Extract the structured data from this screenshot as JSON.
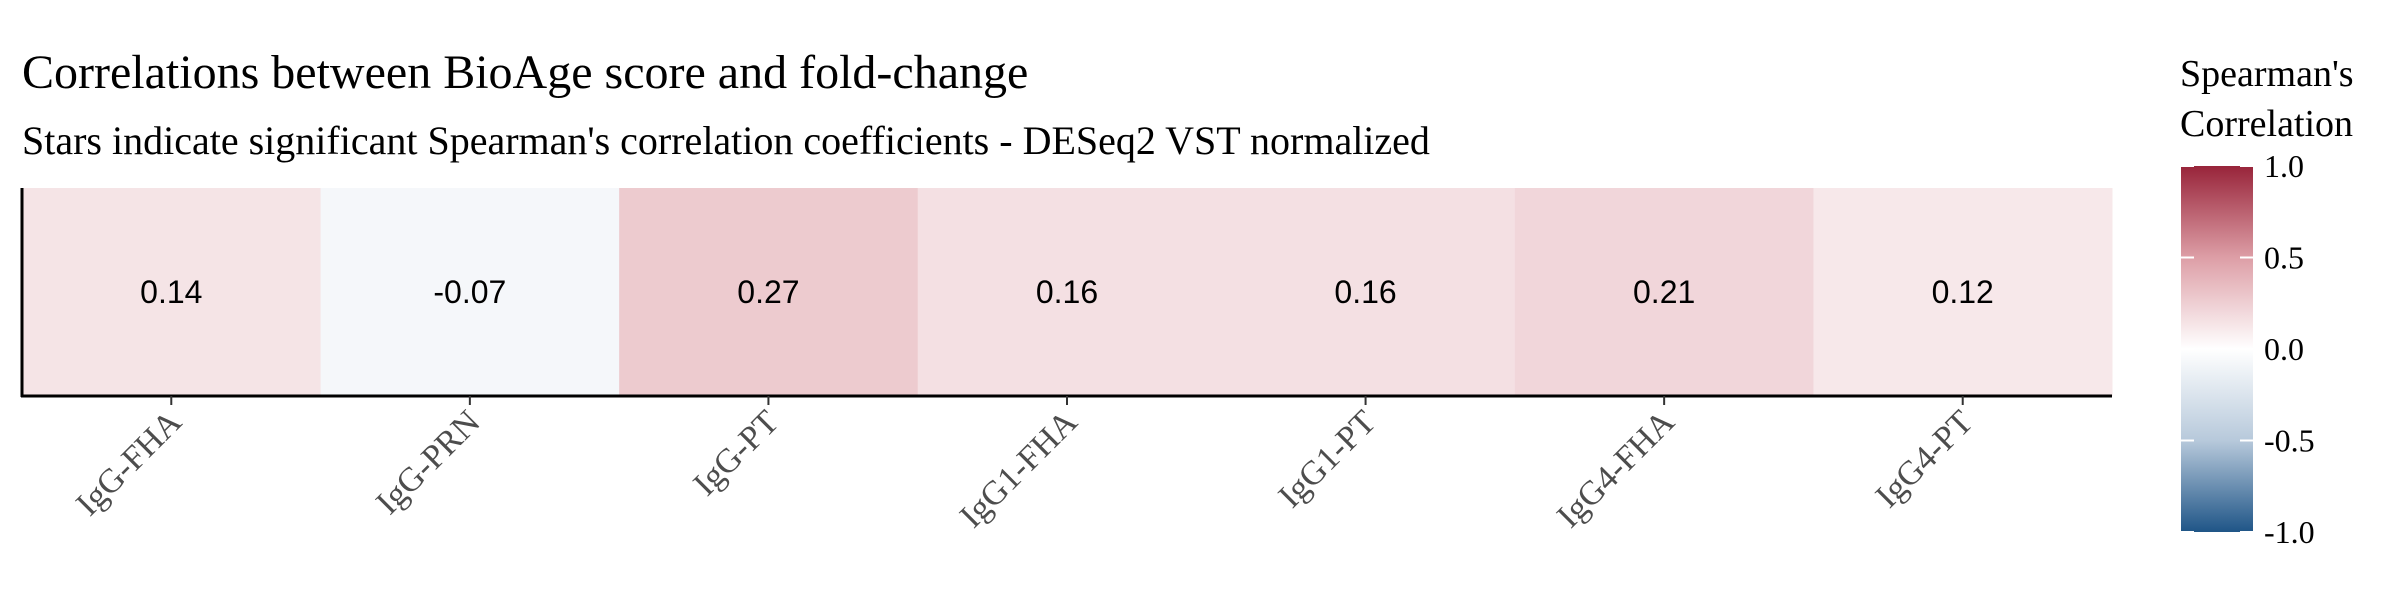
{
  "chart_data": {
    "type": "heatmap",
    "title": "Correlations between BioAge score and fold-change",
    "subtitle": "Stars indicate significant Spearman's correlation coefficients - DESeq2 VST normalized",
    "categories": [
      "IgG-FHA",
      "IgG-PRN",
      "IgG-PT",
      "IgG1-FHA",
      "IgG1-PT",
      "IgG4-FHA",
      "IgG4-PT"
    ],
    "values": [
      0.14,
      -0.07,
      0.27,
      0.16,
      0.16,
      0.21,
      0.12
    ],
    "value_labels": [
      "0.14",
      "-0.07",
      "0.27",
      "0.16",
      "0.16",
      "0.21",
      "0.12"
    ],
    "legend": {
      "title_lines": [
        "Spearman's",
        "Correlation"
      ],
      "range": [
        -1.0,
        1.0
      ],
      "ticks": [
        1.0,
        0.5,
        0.0,
        -0.5,
        -1.0
      ],
      "tick_labels": [
        "1.0",
        "0.5",
        "0.0",
        "-0.5",
        "-1.0"
      ],
      "position": "right"
    },
    "colors": {
      "low": "#1f5587",
      "mid": "#ffffff",
      "high": "#98243a",
      "mid_low": "#b7c9db",
      "mid_high": "#dd9ea6"
    },
    "grid": false
  }
}
